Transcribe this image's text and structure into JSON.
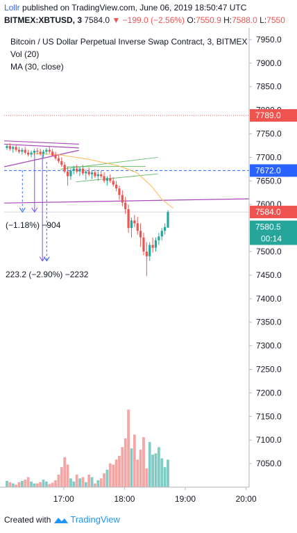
{
  "header": {
    "user": "Lollr",
    "published": "published on TradingView.com, June 06, 2019 18:50:47 UTC",
    "symbol": "BITMEX:XBTUSD, 3",
    "last": "7584.0",
    "change": "−199.0 (−2.56%)",
    "open_label": "O:",
    "open_value": "7550.9",
    "high_label": "H:",
    "high_value": "7588.0",
    "low_label": "L:",
    "low_value": "7550"
  },
  "legend": {
    "title": "Bitcoin / US Dollar Perpetual Inverse Swap Contract, 3, BITMEX",
    "vol": "Vol (20)",
    "ma": "MA (30, close)"
  },
  "annotations": {
    "measure1": "(−1.18%) −904",
    "measure2": "223.2 (−2.90%) −2232"
  },
  "footer": {
    "created": "Created with",
    "brand": "TradingView"
  },
  "chart_data": {
    "type": "candlestick",
    "y_axis": {
      "min": 7000,
      "max": 7975,
      "ticks": [
        7050,
        7100,
        7150,
        7200,
        7250,
        7300,
        7350,
        7400,
        7450,
        7500,
        7550,
        7600,
        7650,
        7700,
        7750,
        7800,
        7850,
        7900,
        7950
      ]
    },
    "x_axis": {
      "tick_labels": [
        "17:00",
        "18:00",
        "19:00",
        "20:00"
      ],
      "tick_times": [
        17.0,
        18.0,
        19.0,
        20.0
      ],
      "range": [
        16.02,
        20.05
      ]
    },
    "price_labels": [
      {
        "value": 7789.0,
        "text": "7789.0",
        "color": "#ef5350"
      },
      {
        "value": 7672.0,
        "text": "7672.0",
        "color": "#2962ff"
      },
      {
        "value": 7584.0,
        "text": "7584.0",
        "color": "#ef5350"
      },
      {
        "value": 7580.5,
        "text": "7580.5",
        "color": "#26a69a"
      }
    ],
    "countdown": {
      "text": "00:14",
      "color": "#26a69a"
    },
    "candles": [
      [
        7720,
        7728,
        7716,
        7724
      ],
      [
        7724,
        7730,
        7714,
        7718
      ],
      [
        7718,
        7725,
        7710,
        7722
      ],
      [
        7722,
        7726,
        7712,
        7716
      ],
      [
        7716,
        7722,
        7708,
        7712
      ],
      [
        7712,
        7720,
        7706,
        7716
      ],
      [
        7716,
        7722,
        7706,
        7710
      ],
      [
        7710,
        7716,
        7702,
        7706
      ],
      [
        7706,
        7714,
        7700,
        7710
      ],
      [
        7710,
        7718,
        7704,
        7714
      ],
      [
        7714,
        7720,
        7706,
        7712
      ],
      [
        7712,
        7718,
        7704,
        7708
      ],
      [
        7708,
        7716,
        7700,
        7712
      ],
      [
        7712,
        7720,
        7706,
        7716
      ],
      [
        7716,
        7722,
        7708,
        7712
      ],
      [
        7712,
        7718,
        7702,
        7704
      ],
      [
        7704,
        7712,
        7694,
        7698
      ],
      [
        7698,
        7706,
        7688,
        7692
      ],
      [
        7692,
        7700,
        7680,
        7684
      ],
      [
        7684,
        7690,
        7666,
        7670
      ],
      [
        7670,
        7680,
        7640,
        7660
      ],
      [
        7660,
        7676,
        7652,
        7672
      ],
      [
        7672,
        7682,
        7664,
        7676
      ],
      [
        7676,
        7684,
        7666,
        7670
      ],
      [
        7670,
        7680,
        7660,
        7676
      ],
      [
        7676,
        7684,
        7662,
        7666
      ],
      [
        7666,
        7674,
        7652,
        7670
      ],
      [
        7670,
        7678,
        7660,
        7664
      ],
      [
        7664,
        7672,
        7654,
        7668
      ],
      [
        7668,
        7674,
        7656,
        7660
      ],
      [
        7660,
        7670,
        7650,
        7664
      ],
      [
        7664,
        7672,
        7656,
        7660
      ],
      [
        7660,
        7668,
        7646,
        7650
      ],
      [
        7650,
        7660,
        7640,
        7656
      ],
      [
        7656,
        7664,
        7646,
        7650
      ],
      [
        7650,
        7658,
        7638,
        7642
      ],
      [
        7642,
        7650,
        7628,
        7634
      ],
      [
        7634,
        7640,
        7610,
        7620
      ],
      [
        7620,
        7630,
        7596,
        7604
      ],
      [
        7604,
        7616,
        7580,
        7590
      ],
      [
        7590,
        7600,
        7540,
        7550
      ],
      [
        7550,
        7572,
        7530,
        7566
      ],
      [
        7566,
        7578,
        7552,
        7560
      ],
      [
        7560,
        7574,
        7536,
        7544
      ],
      [
        7544,
        7560,
        7510,
        7530
      ],
      [
        7530,
        7540,
        7492,
        7500
      ],
      [
        7500,
        7520,
        7448,
        7490
      ],
      [
        7490,
        7520,
        7480,
        7514
      ],
      [
        7514,
        7530,
        7498,
        7508
      ],
      [
        7508,
        7530,
        7500,
        7524
      ],
      [
        7524,
        7540,
        7514,
        7532
      ],
      [
        7532,
        7550,
        7524,
        7544
      ],
      [
        7544,
        7560,
        7536,
        7552
      ],
      [
        7551,
        7588,
        7550,
        7584
      ]
    ],
    "volume": {
      "scale_max": 1000,
      "values": [
        50,
        40,
        30,
        20,
        40,
        50,
        60,
        80,
        45,
        30,
        30,
        40,
        60,
        45,
        25,
        35,
        55,
        100,
        160,
        240,
        180,
        70,
        45,
        100,
        70,
        80,
        40,
        100,
        80,
        30,
        55,
        70,
        110,
        140,
        190,
        180,
        220,
        250,
        320,
        390,
        620,
        310,
        420,
        220,
        300,
        400,
        150,
        360,
        260,
        270,
        320,
        230,
        160,
        220
      ],
      "up": [
        true,
        false,
        true,
        false,
        false,
        true,
        false,
        false,
        true,
        true,
        false,
        false,
        true,
        true,
        false,
        false,
        false,
        false,
        false,
        false,
        false,
        true,
        true,
        false,
        true,
        false,
        true,
        false,
        true,
        false,
        true,
        false,
        false,
        true,
        false,
        false,
        false,
        false,
        false,
        false,
        false,
        true,
        false,
        false,
        false,
        false,
        false,
        true,
        true,
        true,
        true,
        true,
        true,
        true
      ]
    },
    "moving_average": [
      {
        "t": 16.45,
        "v": 7708
      },
      {
        "t": 16.9,
        "v": 7706
      },
      {
        "t": 17.4,
        "v": 7696
      },
      {
        "t": 17.9,
        "v": 7682
      },
      {
        "t": 18.2,
        "v": 7668
      },
      {
        "t": 18.45,
        "v": 7638
      },
      {
        "t": 18.62,
        "v": 7610
      },
      {
        "t": 18.8,
        "v": 7592
      }
    ],
    "drawings": {
      "purple_lines": [
        {
          "t1": 16.02,
          "v1": 7735,
          "t2": 17.25,
          "v2": 7728
        },
        {
          "t1": 16.02,
          "v1": 7728,
          "t2": 17.25,
          "v2": 7720
        },
        {
          "t1": 16.02,
          "v1": 7680,
          "t2": 17.25,
          "v2": 7715
        },
        {
          "t1": 16.02,
          "v1": 7603,
          "t2": 20.05,
          "v2": 7612
        }
      ],
      "green_lines": [
        {
          "t1": 16.95,
          "v1": 7675,
          "t2": 18.55,
          "v2": 7700
        },
        {
          "t1": 17.2,
          "v1": 7648,
          "t2": 18.55,
          "v2": 7665
        },
        {
          "t1": 17.05,
          "v1": 7680,
          "t2": 18.35,
          "v2": 7681
        }
      ],
      "blue_dashed": {
        "value": 7672
      },
      "red_dotted": {
        "value": 7789
      },
      "hline_7584": {
        "value": 7584
      },
      "arrows": [
        {
          "t": 16.32,
          "v1": 7672,
          "v2": 7584,
          "color": "#2962ff"
        },
        {
          "t": 16.52,
          "v1": 7710,
          "v2": 7584,
          "color": "#7c4dff"
        },
        {
          "t": 16.65,
          "v1": 7710,
          "v2": 7480,
          "color": "#7c4dff"
        },
        {
          "t": 16.72,
          "v1": 7690,
          "v2": 7480,
          "color": "#2962ff"
        }
      ]
    }
  }
}
